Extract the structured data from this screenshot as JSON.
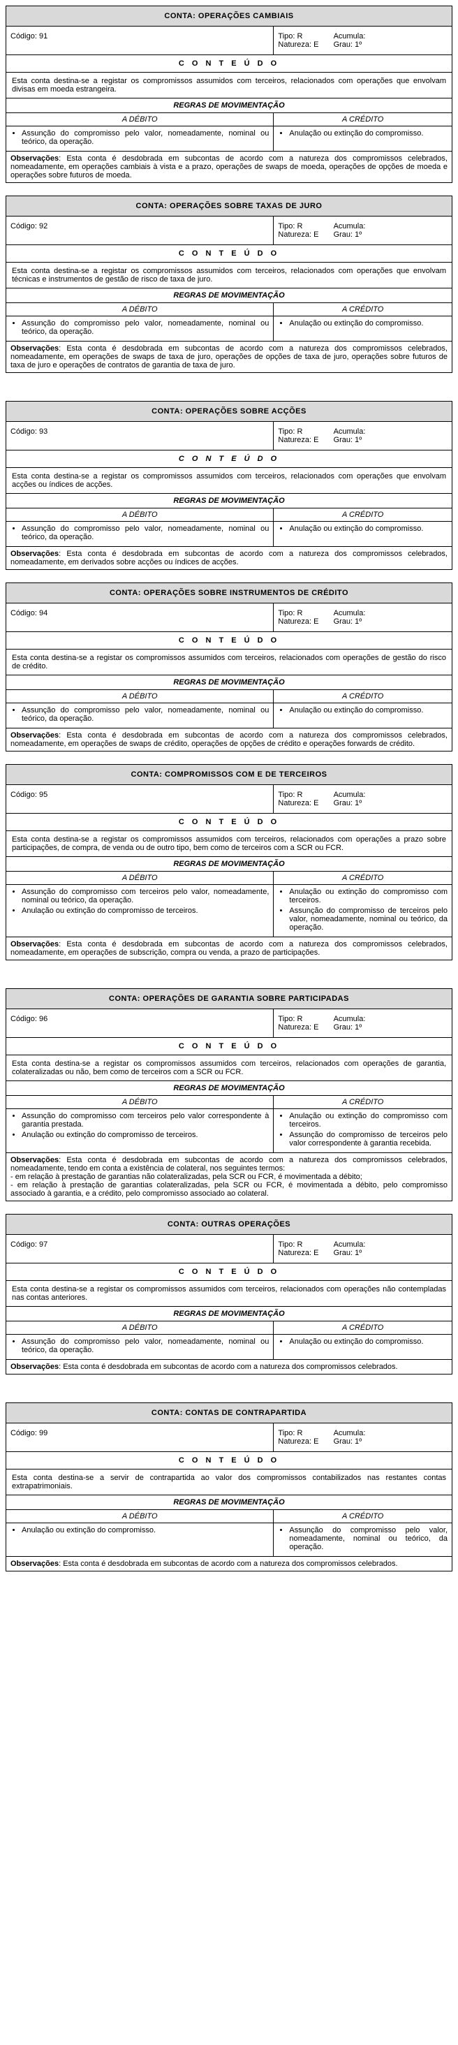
{
  "labels": {
    "codigo": "Código:",
    "tipo": "Tipo:",
    "natureza": "Natureza:",
    "acumula": "Acumula:",
    "grau": "Grau:",
    "conteudo": "C O N T E Ú D O",
    "regras": "REGRAS DE MOVIMENTAÇÃO",
    "adebito": "A DÉBITO",
    "acredito": "A CRÉDITO",
    "observacoes": "Observações"
  },
  "accounts": [
    {
      "title": "CONTA: OPERAÇÕES CAMBIAIS",
      "codigo": "91",
      "tipo": "R",
      "natureza": "E",
      "acumula": "",
      "grau": "1º",
      "conteudo_italic": false,
      "desc": "Esta conta destina-se a registar os compromissos assumidos com terceiros, relacionados com operações que envolvam divisas em moeda estrangeira.",
      "debito": [
        "Assunção do compromisso pelo valor, nomeadamente, nominal ou teórico, da operação."
      ],
      "credito": [
        "Anulação ou extinção do compromisso."
      ],
      "obs": ": Esta conta é desdobrada em subcontas de acordo com a natureza dos compromissos celebrados, nomeadamente, em operações cambiais à vista e a prazo, operações de swaps de moeda, operações de opções de moeda e operações sobre futuros de moeda.",
      "obs_extra": []
    },
    {
      "title": "CONTA: OPERAÇÕES SOBRE TAXAS DE JURO",
      "codigo": "92",
      "tipo": "R",
      "natureza": "E",
      "acumula": "",
      "grau": "1º",
      "conteudo_italic": false,
      "desc": "Esta conta destina-se a registar os compromissos assumidos com terceiros, relacionados com operações que envolvam técnicas e instrumentos de gestão de risco de taxa de juro.",
      "debito": [
        "Assunção do compromisso pelo valor, nomeadamente, nominal ou teórico, da operação."
      ],
      "credito": [
        "Anulação ou extinção do compromisso."
      ],
      "obs": ": Esta conta é desdobrada em subcontas de acordo com a natureza dos compromissos celebrados, nomeadamente, em operações de swaps de taxa de juro, operações de opções de taxa de juro, operações sobre futuros de taxa de juro e operações de contratos de garantia de taxa de juro.",
      "obs_extra": []
    },
    {
      "title": "CONTA: OPERAÇÕES SOBRE ACÇÕES",
      "codigo": "93",
      "tipo": "R",
      "natureza": "E",
      "acumula": "",
      "grau": "1º",
      "conteudo_italic": true,
      "desc": "Esta conta destina-se a registar os compromissos assumidos com terceiros, relacionados com operações que envolvam acções ou índices de acções.",
      "debito": [
        "Assunção do compromisso pelo valor, nomeadamente, nominal ou teórico, da operação."
      ],
      "credito": [
        "Anulação ou extinção do compromisso."
      ],
      "obs": ": Esta conta é desdobrada em subcontas de acordo com a natureza dos compromissos celebrados, nomeadamente, em derivados sobre acções ou índices de acções.",
      "obs_extra": []
    },
    {
      "title": "CONTA: OPERAÇÕES SOBRE INSTRUMENTOS DE CRÉDITO",
      "codigo": "94",
      "tipo": "R",
      "natureza": "E",
      "acumula": "",
      "grau": "1º",
      "conteudo_italic": false,
      "desc": "Esta conta destina-se a registar os compromissos assumidos com terceiros, relacionados com operações de gestão do risco de crédito.",
      "debito": [
        "Assunção do compromisso pelo valor, nomeadamente, nominal ou teórico, da operação."
      ],
      "credito": [
        "Anulação ou extinção do compromisso."
      ],
      "obs": ": Esta conta é desdobrada em subcontas de acordo com a natureza dos compromissos celebrados, nomeadamente, em operações de swaps de crédito, operações de opções de crédito e operações forwards de crédito.",
      "obs_extra": []
    },
    {
      "title": "CONTA: COMPROMISSOS COM E DE TERCEIROS",
      "codigo": "95",
      "tipo": "R",
      "natureza": "E",
      "acumula": "",
      "grau": "1º",
      "conteudo_italic": false,
      "desc": "Esta conta destina-se a registar os compromissos assumidos com terceiros, relacionados com operações a prazo sobre participações, de compra, de venda ou de outro tipo, bem como de terceiros com a SCR ou FCR.",
      "debito": [
        "Assunção do compromisso com terceiros pelo valor, nomeadamente, nominal ou teórico, da operação.",
        "Anulação ou extinção do compromisso de terceiros."
      ],
      "credito": [
        "Anulação ou extinção do compromisso com terceiros.",
        "Assunção do compromisso de terceiros pelo valor, nomeadamente, nominal ou teórico, da operação."
      ],
      "obs": ": Esta conta é desdobrada em subcontas de acordo com a natureza dos compromissos celebrados, nomeadamente, em operações de subscrição, compra ou venda, a prazo de participações.",
      "obs_extra": []
    },
    {
      "title": "CONTA: OPERAÇÕES DE GARANTIA SOBRE PARTICIPADAS",
      "codigo": "96",
      "tipo": "R",
      "natureza": "E",
      "acumula": "",
      "grau": "1º",
      "conteudo_italic": false,
      "desc": "Esta conta destina-se a registar os compromissos assumidos com terceiros, relacionados com operações de garantia, colateralizadas ou não, bem como de terceiros com a SCR ou FCR.",
      "debito": [
        "Assunção do compromisso com terceiros pelo valor correspondente à garantia prestada.",
        "Anulação ou extinção do compromisso de terceiros."
      ],
      "credito": [
        "Anulação ou extinção do compromisso com terceiros.",
        "Assunção do compromisso de terceiros pelo valor correspondente à garantia recebida."
      ],
      "obs": ": Esta conta é desdobrada em subcontas de acordo com a natureza dos compromissos celebrados, nomeadamente, tendo em conta a existência de colateral, nos seguintes termos:",
      "obs_extra": [
        "- em relação à prestação de garantias não colateralizadas, pela SCR ou FCR, é movimentada a débito;",
        "- em relação à prestação de garantias colateralizadas, pela SCR ou FCR, é movimentada a débito, pelo compromisso associado à garantia, e a crédito, pelo compromisso associado ao colateral."
      ]
    },
    {
      "title": "CONTA: OUTRAS OPERAÇÕES",
      "codigo": "97",
      "tipo": "R",
      "natureza": "E",
      "acumula": "",
      "grau": "1º",
      "conteudo_italic": false,
      "desc": "Esta conta destina-se a registar os compromissos assumidos com terceiros, relacionados com operações não contempladas nas contas anteriores.",
      "debito": [
        "Assunção do compromisso pelo valor, nomeadamente, nominal ou teórico, da operação."
      ],
      "credito": [
        "Anulação ou extinção do compromisso."
      ],
      "obs": ": Esta conta é desdobrada em subcontas de acordo com a natureza dos compromissos celebrados.",
      "obs_extra": []
    },
    {
      "title": "CONTA: CONTAS DE CONTRAPARTIDA",
      "codigo": "99",
      "tipo": "R",
      "natureza": "E",
      "acumula": "",
      "grau": "1º",
      "conteudo_italic": false,
      "desc": "Esta conta destina-se a servir de contrapartida ao valor dos compromissos contabilizados nas restantes contas extrapatrimoniais.",
      "debito": [
        "Anulação ou extinção do compromisso."
      ],
      "credito": [
        "Assunção do compromisso pelo valor, nomeadamente, nominal ou teórico, da operação."
      ],
      "obs": ": Esta conta é desdobrada em subcontas de acordo com a natureza dos compromissos celebrados.",
      "obs_extra": []
    }
  ],
  "gaps": [
    "small",
    "gap",
    "small",
    "small",
    "gap",
    "small",
    "gap",
    "gap"
  ]
}
